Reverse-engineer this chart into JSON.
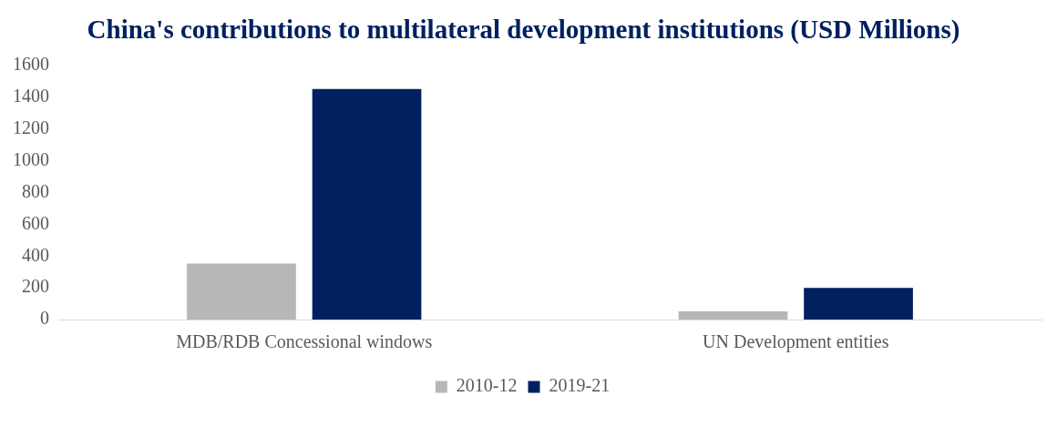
{
  "chart_data": {
    "type": "bar",
    "title": "China's contributions to multilateral development institutions (USD Millions)",
    "categories": [
      "MDB/RDB Concessional windows",
      "UN Development entities"
    ],
    "series": [
      {
        "name": "2010-12",
        "color": "#b7b7b7",
        "values": [
          352,
          51
        ]
      },
      {
        "name": "2019-21",
        "color": "#002060",
        "values": [
          1452,
          199
        ]
      }
    ],
    "ylim": [
      0,
      1600
    ],
    "yticks": [
      0,
      200,
      400,
      600,
      800,
      1000,
      1200,
      1400,
      1600
    ],
    "grid": false,
    "legend": "bottom"
  }
}
